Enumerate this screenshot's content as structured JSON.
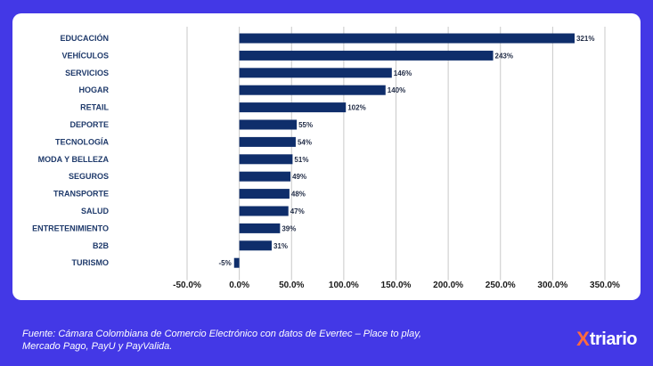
{
  "chart_data": {
    "type": "bar",
    "orientation": "horizontal",
    "categories": [
      "EDUCACIÓN",
      "VEHÍCULOS",
      "SERVICIOS",
      "HOGAR",
      "RETAIL",
      "DEPORTE",
      "TECNOLOGÍA",
      "MODA Y BELLEZA",
      "SEGUROS",
      "TRANSPORTE",
      "SALUD",
      "ENTRETENIMIENTO",
      "B2B",
      "TURISMO"
    ],
    "values": [
      321,
      243,
      146,
      140,
      102,
      55,
      54,
      51,
      49,
      48,
      47,
      39,
      31,
      -5
    ],
    "value_labels": [
      "321%",
      "243%",
      "146%",
      "140%",
      "102%",
      "55%",
      "54%",
      "51%",
      "49%",
      "48%",
      "47%",
      "39%",
      "31%",
      "-5%"
    ],
    "xlim": [
      -50,
      350
    ],
    "x_ticks": [
      -50,
      0,
      50,
      100,
      150,
      200,
      250,
      300,
      350
    ],
    "x_tick_labels": [
      "-50.0%",
      "0.0%",
      "50.0%",
      "100.0%",
      "150.0%",
      "200.0%",
      "250.0%",
      "300.0%",
      "350.0%"
    ],
    "grid": "vertical",
    "bar_color": "#0f2e6b"
  },
  "footer": {
    "source": "Fuente: Cámara Colombiana de Comercio Electrónico con datos de Evertec – Place to play, Mercado Pago, PayU y PayValida.",
    "brand_glyph": "X",
    "brand_name": "triario",
    "brand_icon": "x-logo-icon"
  }
}
